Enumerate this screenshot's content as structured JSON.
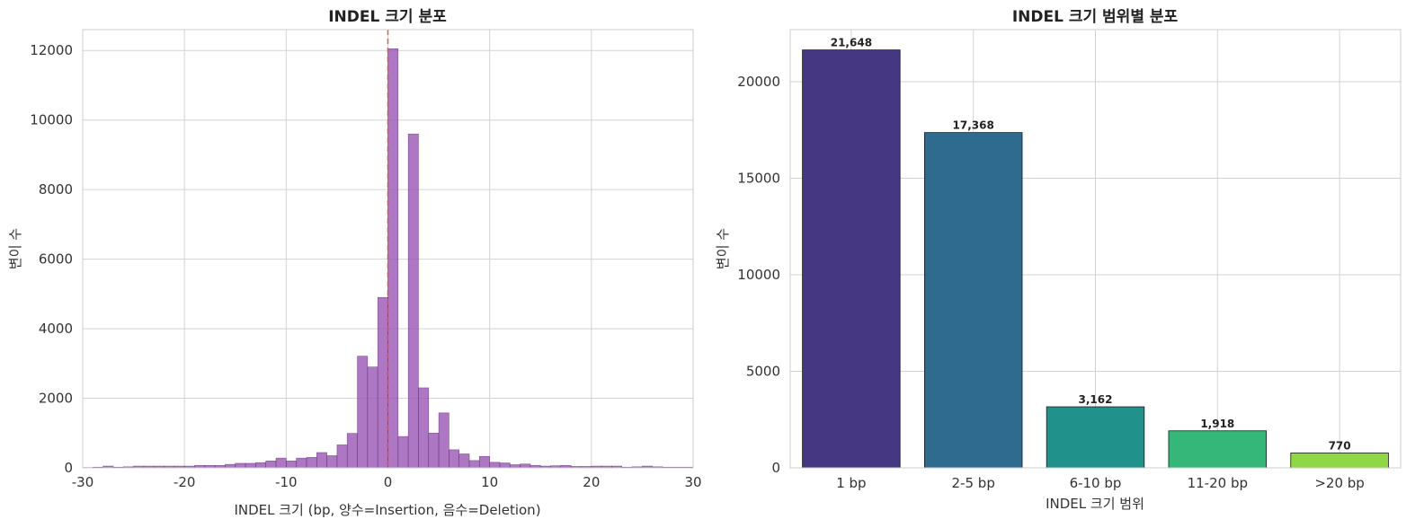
{
  "chart_data": [
    {
      "type": "histogram",
      "title": "INDEL 크기 분포",
      "xlabel": "INDEL 크기 (bp, 양수=Insertion, 음수=Deletion)",
      "ylabel": "변이 수",
      "xlim": [
        -30,
        30
      ],
      "ylim": [
        0,
        12600
      ],
      "xticks": [
        "-30",
        "-20",
        "-10",
        "0",
        "10",
        "20",
        "30"
      ],
      "yticks": [
        "0",
        "2000",
        "4000",
        "6000",
        "8000",
        "10000",
        "12000"
      ],
      "grid": true,
      "bin_width": 1,
      "bin_start": -30,
      "counts": [
        10,
        20,
        50,
        20,
        30,
        50,
        50,
        50,
        50,
        50,
        50,
        70,
        70,
        70,
        100,
        130,
        130,
        150,
        200,
        280,
        200,
        280,
        300,
        440,
        350,
        660,
        990,
        3210,
        2900,
        4900,
        12050,
        900,
        9600,
        2300,
        1000,
        1580,
        520,
        400,
        210,
        330,
        160,
        140,
        90,
        110,
        70,
        50,
        60,
        70,
        40,
        40,
        50,
        50,
        50,
        20,
        30,
        50,
        30,
        20,
        20,
        20
      ],
      "bar_color": "#9b59b6",
      "reference_line": {
        "x": 0,
        "color": "#e74c3c",
        "style": "dashed"
      }
    },
    {
      "type": "bar",
      "title": "INDEL 크기 범위별 분포",
      "xlabel": "INDEL 크기 범위",
      "ylabel": "변이 수",
      "categories": [
        "1 bp",
        "2-5 bp",
        "6-10 bp",
        "11-20 bp",
        ">20 bp"
      ],
      "values": [
        21648,
        17368,
        3162,
        1918,
        770
      ],
      "value_labels": [
        "21,648",
        "17,368",
        "3,162",
        "1,918",
        "770"
      ],
      "colors": [
        "#453781",
        "#2f6b8e",
        "#21918c",
        "#35b779",
        "#8fd744"
      ],
      "ylim": [
        0,
        22700
      ],
      "yticks": [
        "0",
        "5000",
        "10000",
        "15000",
        "20000"
      ],
      "grid": true
    }
  ]
}
